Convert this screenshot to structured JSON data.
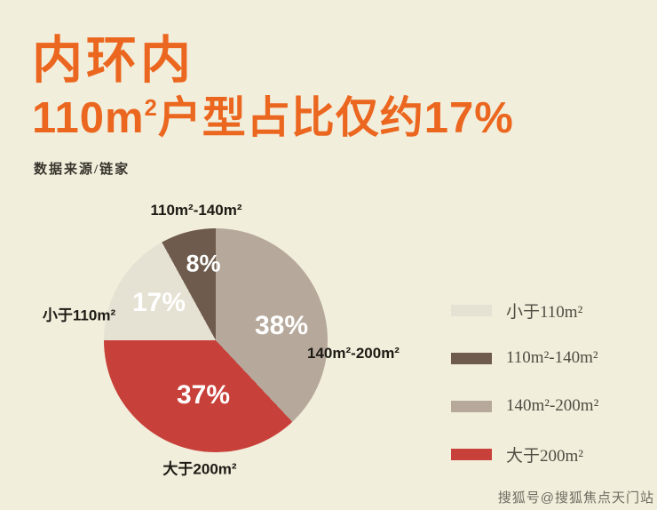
{
  "header": {
    "title_line1": "内环内",
    "title_line2_prefix": "110m",
    "title_line2_sup": "2",
    "title_line2_suffix": "户型占比仅约17%",
    "source": "数据来源/链家"
  },
  "chart_data": {
    "type": "pie",
    "title": "内环内 110m²户型占比仅约17%",
    "source": "数据来源/链家",
    "start_angle_deg": 0,
    "direction": "clockwise",
    "legend_position": "right",
    "slices": [
      {
        "label": "140m²-200m²",
        "value": 38,
        "pct_label": "38%",
        "color": "#b6a99c"
      },
      {
        "label": "大于200m²",
        "value": 37,
        "pct_label": "37%",
        "color": "#c8403a"
      },
      {
        "label": "小于110m²",
        "value": 17,
        "pct_label": "17%",
        "color": "#e5e1d3"
      },
      {
        "label": "110m²-140m²",
        "value": 8,
        "pct_label": "8%",
        "color": "#6e5b4d"
      }
    ]
  },
  "legend": {
    "items": [
      {
        "label": "小于110m²",
        "color": "#e5e1d3"
      },
      {
        "label": "110m²-140m²",
        "color": "#6e5b4d"
      },
      {
        "label": "140m²-200m²",
        "color": "#b6a99c"
      },
      {
        "label": "大于200m²",
        "color": "#c8403a"
      }
    ]
  },
  "watermark": "搜狐号@搜狐焦点天门站",
  "colors": {
    "background": "#f2eedc",
    "accent_orange": "#eb671f"
  }
}
